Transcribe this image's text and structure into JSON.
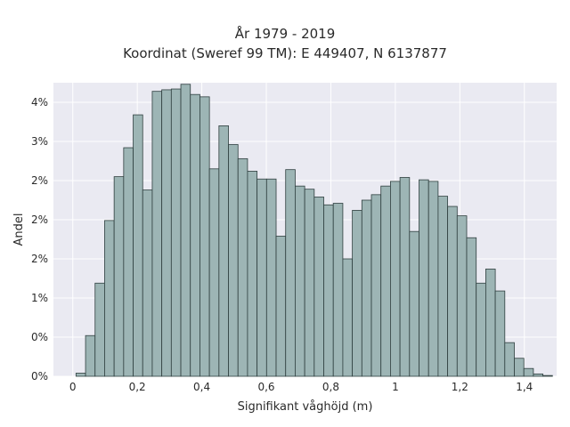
{
  "chart_data": {
    "type": "bar",
    "title": "År 1979 - 2019",
    "subtitle": "Koordinat (Sweref 99 TM): E 449407, N 6137877",
    "xlabel": "Signifikant våghöjd (m)",
    "ylabel": "Andel",
    "xlim": [
      -0.06,
      1.5
    ],
    "ylim": [
      0,
      0.0375
    ],
    "grid": true,
    "bar_color": "#9db5b5",
    "edge_color": "#2f3f3f",
    "background_color": "#eaeaf2",
    "x_ticks": [
      {
        "value": 0,
        "label": "0"
      },
      {
        "value": 0.2,
        "label": "0,2"
      },
      {
        "value": 0.4,
        "label": "0,4"
      },
      {
        "value": 0.6,
        "label": "0,6"
      },
      {
        "value": 0.8,
        "label": "0,8"
      },
      {
        "value": 1.0,
        "label": "1"
      },
      {
        "value": 1.2,
        "label": "1,2"
      },
      {
        "value": 1.4,
        "label": "1,4"
      }
    ],
    "y_ticks": [
      {
        "value": 0,
        "label": "0%"
      },
      {
        "value": 0.005,
        "label": "0%"
      },
      {
        "value": 0.01,
        "label": "1%"
      },
      {
        "value": 0.015,
        "label": "2%"
      },
      {
        "value": 0.02,
        "label": "2%"
      },
      {
        "value": 0.025,
        "label": "2%"
      },
      {
        "value": 0.03,
        "label": "3%"
      },
      {
        "value": 0.035,
        "label": "4%"
      }
    ],
    "bin_start": 0.01,
    "bin_width": 0.02954,
    "values": [
      0.0004,
      0.0052,
      0.0119,
      0.0199,
      0.0255,
      0.0292,
      0.0334,
      0.0238,
      0.0364,
      0.0366,
      0.0367,
      0.0373,
      0.036,
      0.0357,
      0.0265,
      0.032,
      0.0296,
      0.0278,
      0.0262,
      0.0252,
      0.0252,
      0.0179,
      0.0264,
      0.0243,
      0.0239,
      0.0229,
      0.0219,
      0.0221,
      0.015,
      0.0212,
      0.0225,
      0.0232,
      0.0243,
      0.0249,
      0.0254,
      0.0185,
      0.0251,
      0.0249,
      0.023,
      0.0217,
      0.0205,
      0.0177,
      0.0119,
      0.0137,
      0.0109,
      0.0043,
      0.0023,
      0.001,
      0.0003,
      0.0001
    ]
  }
}
